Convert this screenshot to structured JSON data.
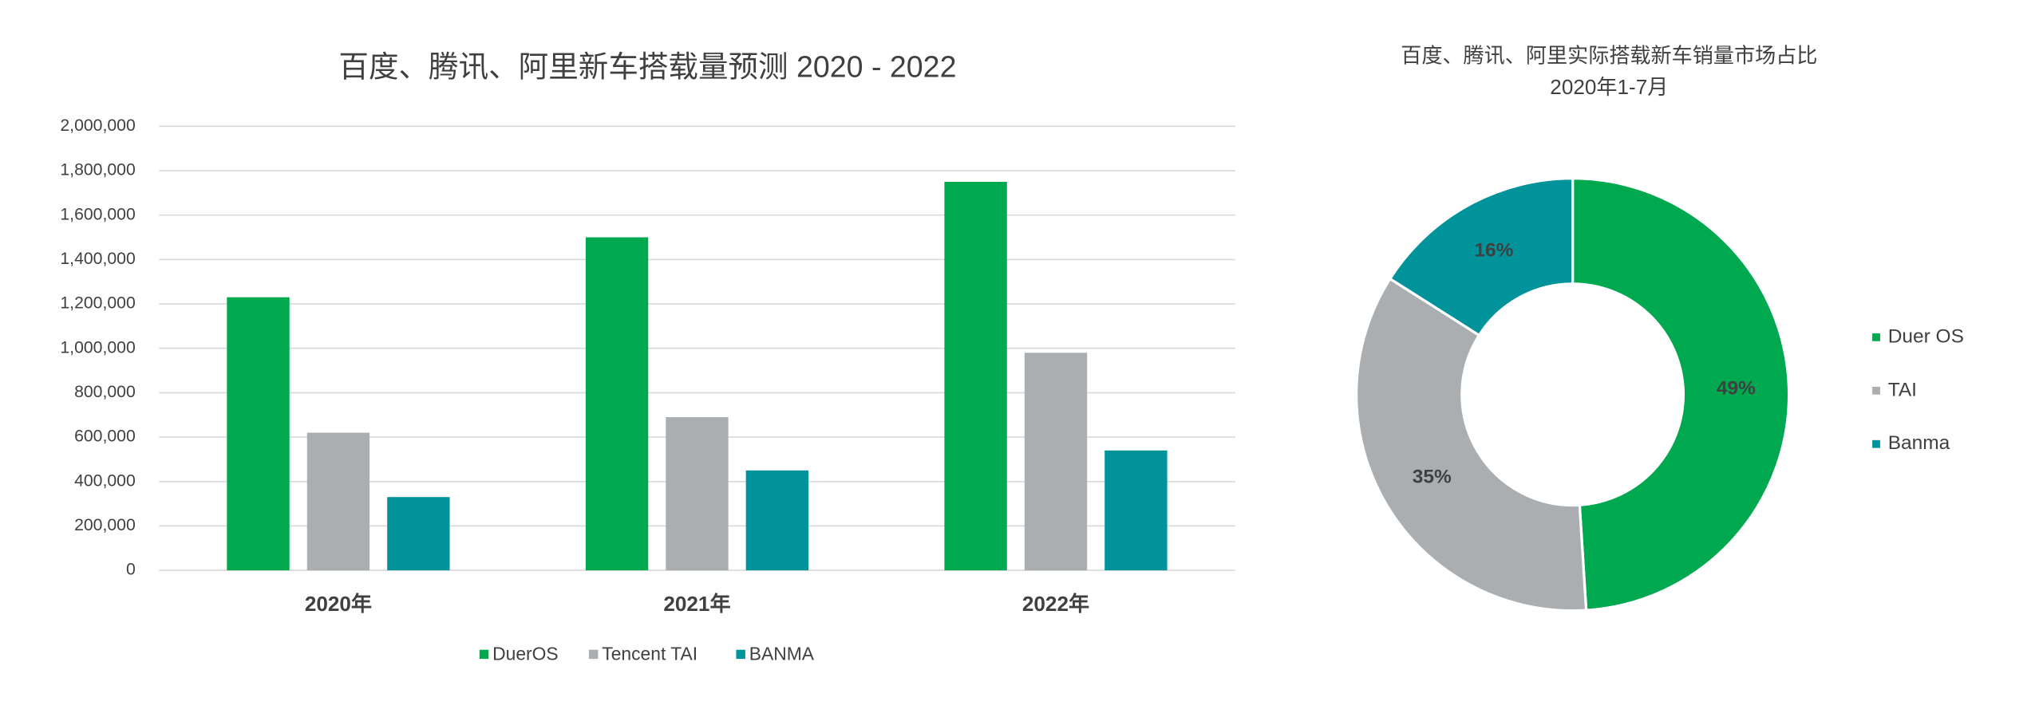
{
  "chart_data": [
    {
      "type": "bar",
      "title": "百度、腾讯、阿里新车搭载量预测 2020 - 2022",
      "categories": [
        "2020年",
        "2021年",
        "2022年"
      ],
      "series": [
        {
          "name": "DuerOS",
          "color": "#00a84f",
          "values": [
            1230000,
            1500000,
            1750000
          ]
        },
        {
          "name": "Tencent TAI",
          "color": "#abaeb1",
          "values": [
            620000,
            690000,
            980000
          ]
        },
        {
          "name": "BANMA",
          "color": "#00939a",
          "values": [
            330000,
            450000,
            540000
          ]
        }
      ],
      "ylim": [
        0,
        2000000
      ],
      "yticks": [
        0,
        {
          "value": 200000,
          "label": "200,000"
        },
        {
          "value": 400000,
          "label": "400,000"
        },
        {
          "value": 600000,
          "label": "600,000"
        },
        {
          "value": 800000,
          "label": "800,000"
        },
        {
          "value": 1000000,
          "label": "1,000,000"
        },
        {
          "value": 1200000,
          "label": "1,200,000"
        },
        {
          "value": 1400000,
          "label": "1,400,000"
        },
        {
          "value": 1600000,
          "label": "1,600,000"
        },
        {
          "value": 1800000,
          "label": "1,800,000"
        },
        {
          "value": 2000000,
          "label": "2,000,000"
        }
      ],
      "grid": true,
      "legend": "bottom"
    },
    {
      "type": "pie",
      "title": "百度、腾讯、阿里实际搭载新车销量市场占比",
      "subtitle": "2020年1-7月",
      "categories": [
        "Duer OS",
        "TAI",
        "Banma"
      ],
      "values": [
        49,
        35,
        16
      ],
      "value_labels": [
        "49%",
        "35%",
        "16%"
      ],
      "colors": [
        "#00a84f",
        "#abaeb1",
        "#00939a"
      ],
      "legend": "right"
    }
  ]
}
